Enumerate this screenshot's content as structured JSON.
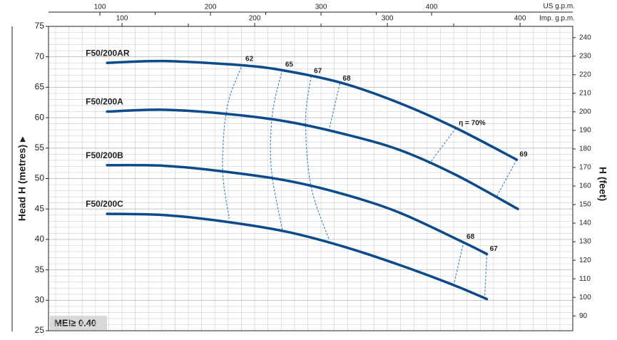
{
  "chart_data": {
    "type": "line",
    "y_label": "Head H (metres) ▸",
    "y2_label": "H (feet)",
    "x_label": "US g.p.m.",
    "x2_label": "Imp. g.p.m.",
    "badge": "MEI≥ 0.40",
    "xlim": [
      53.5,
      527.7
    ],
    "xticks": [
      100,
      200,
      300,
      400
    ],
    "xminor": [
      150,
      250,
      350
    ],
    "x2lim": [
      44.6,
      439.75
    ],
    "x2ticks": [
      100,
      200,
      300,
      400
    ],
    "x2minor": [
      150,
      250,
      350
    ],
    "ylim": [
      25,
      75
    ],
    "yticks": [
      25,
      30,
      35,
      40,
      45,
      50,
      55,
      60,
      65,
      70,
      75
    ],
    "y2lim": [
      82.02,
      246.06
    ],
    "y2ticks": [
      90,
      100,
      110,
      120,
      130,
      140,
      150,
      160,
      170,
      180,
      190,
      200,
      210,
      220,
      230,
      240
    ],
    "grid": true,
    "minor_grid": {
      "y_step": 1,
      "x2_step": 10
    },
    "series": [
      {
        "name": "F50/200AR",
        "color": "#0b4a8b",
        "x": [
          106.5,
          158,
          229,
          268,
          319,
          371,
          422,
          477
        ],
        "values": [
          69.0,
          69.3,
          68.6,
          67.7,
          65.7,
          62.4,
          58.3,
          53.1
        ]
      },
      {
        "name": "F50/200A",
        "color": "#0b4a8b",
        "x": [
          106.5,
          158,
          216,
          268,
          319,
          371,
          422,
          478
        ],
        "values": [
          61.0,
          61.3,
          60.6,
          59.4,
          57.4,
          54.7,
          50.6,
          45.0
        ]
      },
      {
        "name": "F50/200B",
        "color": "#0b4a8b",
        "x": [
          106.5,
          158,
          210,
          268,
          319,
          371,
          429,
          450
        ],
        "values": [
          52.2,
          52.1,
          51.2,
          49.7,
          47.5,
          44.4,
          39.5,
          37.6
        ]
      },
      {
        "name": "F50/200C",
        "color": "#0b4a8b",
        "x": [
          106.5,
          158,
          210,
          268,
          319,
          371,
          420,
          450
        ],
        "values": [
          44.2,
          44.0,
          43.0,
          41.3,
          38.9,
          35.8,
          32.5,
          30.2
        ]
      }
    ],
    "efficiency_color": "#3a8fd8",
    "efficiency_lines": [
      {
        "label": "62",
        "x": [
          229,
          215,
          211,
          217
        ],
        "values": [
          68.8,
          61.7,
          51.5,
          43.4
        ]
      },
      {
        "label": "65",
        "x": [
          265,
          256,
          255,
          265
        ],
        "values": [
          67.9,
          60.6,
          51.6,
          41.6
        ]
      },
      {
        "label": "67",
        "x": [
          291,
          286,
          291,
          307
        ],
        "values": [
          66.8,
          59.4,
          48.7,
          40.1
        ]
      },
      {
        "label": "68",
        "x": [
          317,
          307
        ],
        "values": [
          65.6,
          57.8
        ]
      },
      {
        "label": "η = 70%",
        "x": [
          422,
          397
        ],
        "values": [
          58.3,
          52.2
        ]
      },
      {
        "label": "69",
        "x": [
          477,
          459
        ],
        "values": [
          53.1,
          47.1
        ]
      },
      {
        "label": "68",
        "x": [
          429,
          420
        ],
        "values": [
          39.6,
          32.5
        ]
      },
      {
        "label": "67",
        "x": [
          450,
          448
        ],
        "values": [
          37.6,
          30.4
        ]
      }
    ]
  }
}
